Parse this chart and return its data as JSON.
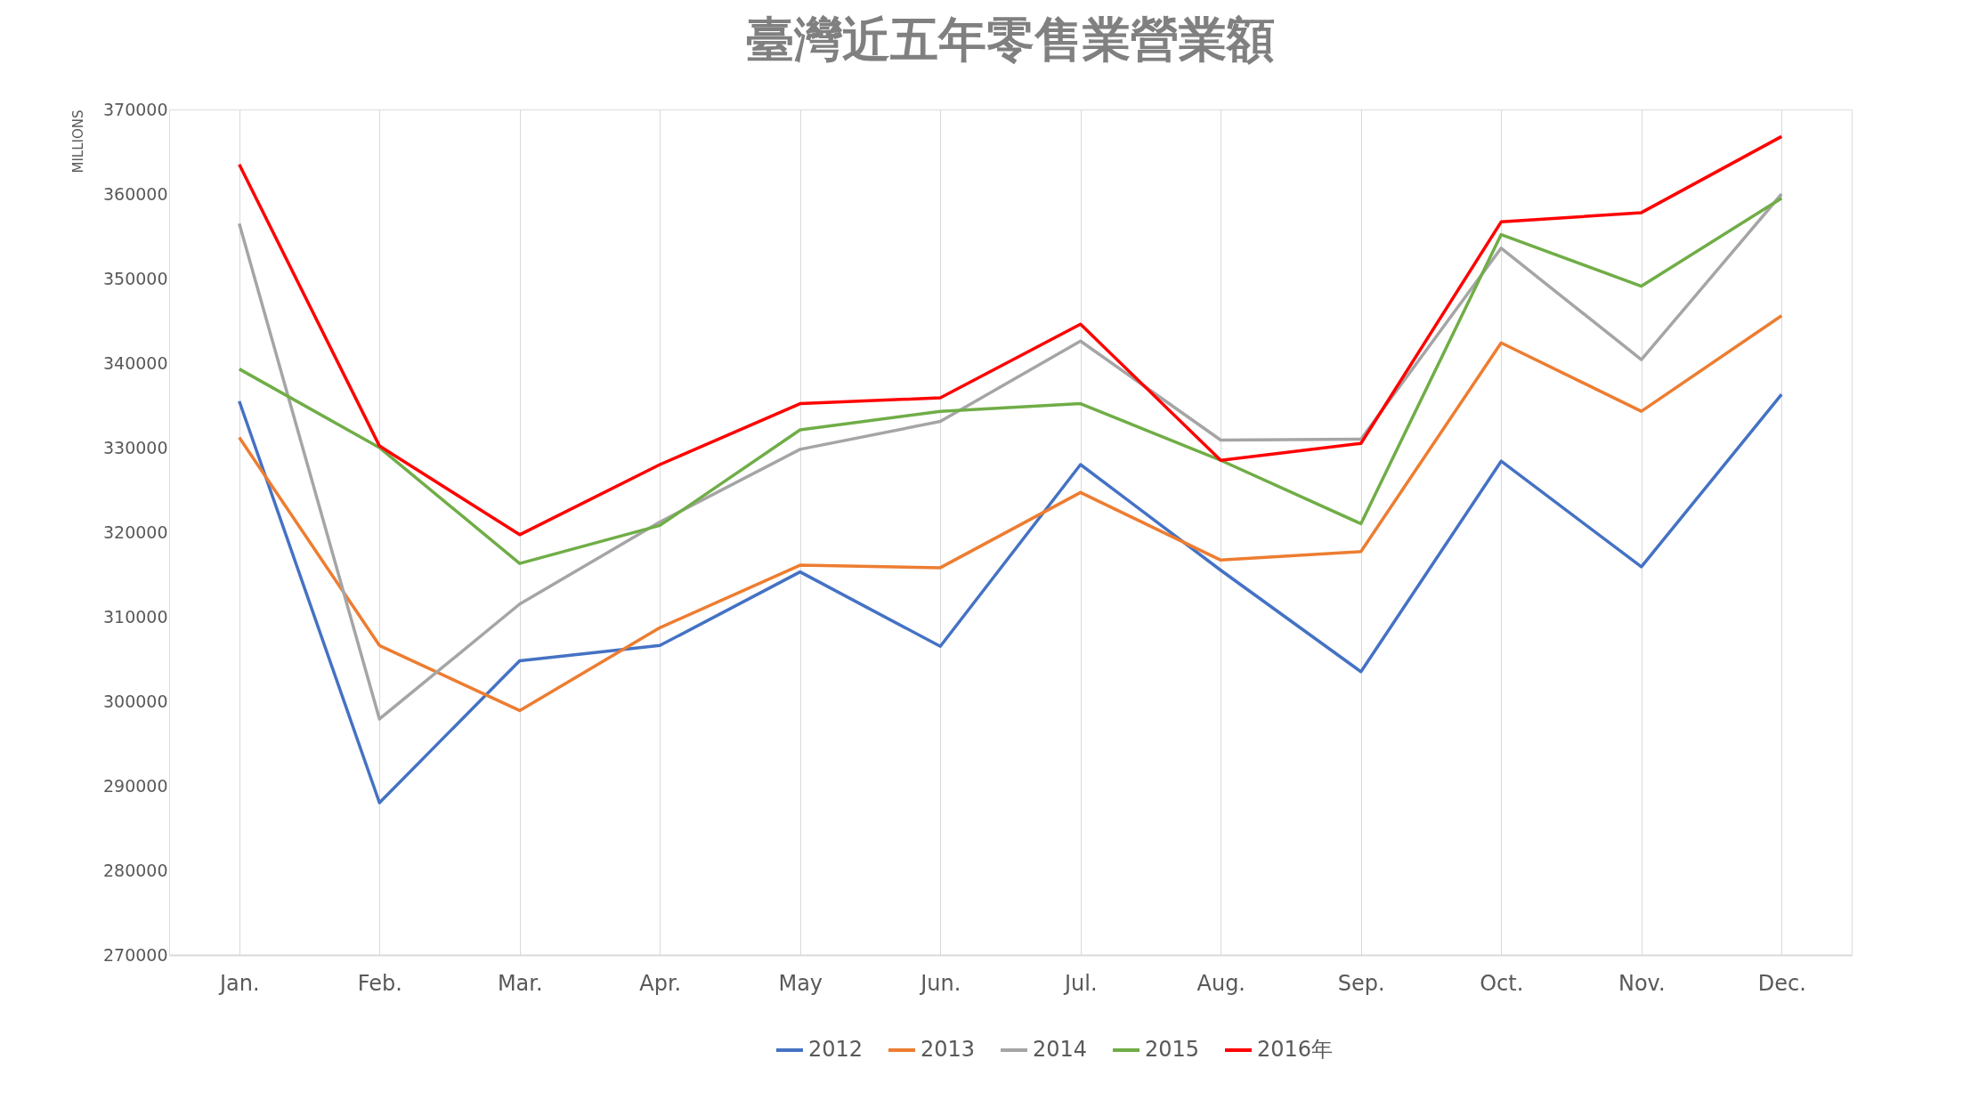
{
  "chart_data": {
    "type": "line",
    "title": "臺灣近五年零售業營業額",
    "ylabel": "MILLIONS",
    "categories": [
      "Jan.",
      "Feb.",
      "Mar.",
      "Apr.",
      "May",
      "Jun.",
      "Jul.",
      "Aug.",
      "Sep.",
      "Oct.",
      "Nov.",
      "Dec."
    ],
    "series": [
      {
        "name": "2012",
        "color": "#4472c4",
        "values": [
          335500,
          288000,
          304800,
          306600,
          315300,
          306500,
          328000,
          315500,
          303500,
          328400,
          315900,
          336300
        ]
      },
      {
        "name": "2013",
        "color": "#ed7d31",
        "values": [
          331200,
          306600,
          298900,
          308700,
          316100,
          315800,
          324700,
          316700,
          317700,
          342400,
          334300,
          345600
        ]
      },
      {
        "name": "2014",
        "color": "#a5a5a5",
        "values": [
          356500,
          297900,
          311500,
          321200,
          329800,
          333100,
          342600,
          330900,
          331000,
          353600,
          340400,
          360000
        ]
      },
      {
        "name": "2015",
        "color": "#70ad47",
        "values": [
          339300,
          330000,
          316300,
          320800,
          332100,
          334300,
          335200,
          328500,
          321000,
          355200,
          349100,
          359500
        ]
      },
      {
        "name": "2016年",
        "color": "#ff0000",
        "values": [
          363500,
          330200,
          319700,
          328000,
          335200,
          335900,
          344600,
          328500,
          330500,
          356700,
          357800,
          366800
        ]
      }
    ],
    "ylim": [
      270000,
      370000
    ],
    "yticks": [
      270000,
      280000,
      290000,
      300000,
      310000,
      320000,
      330000,
      340000,
      350000,
      360000,
      370000
    ],
    "grid": "x",
    "legend": "bottom",
    "marker": "none",
    "line_style": "solid"
  }
}
